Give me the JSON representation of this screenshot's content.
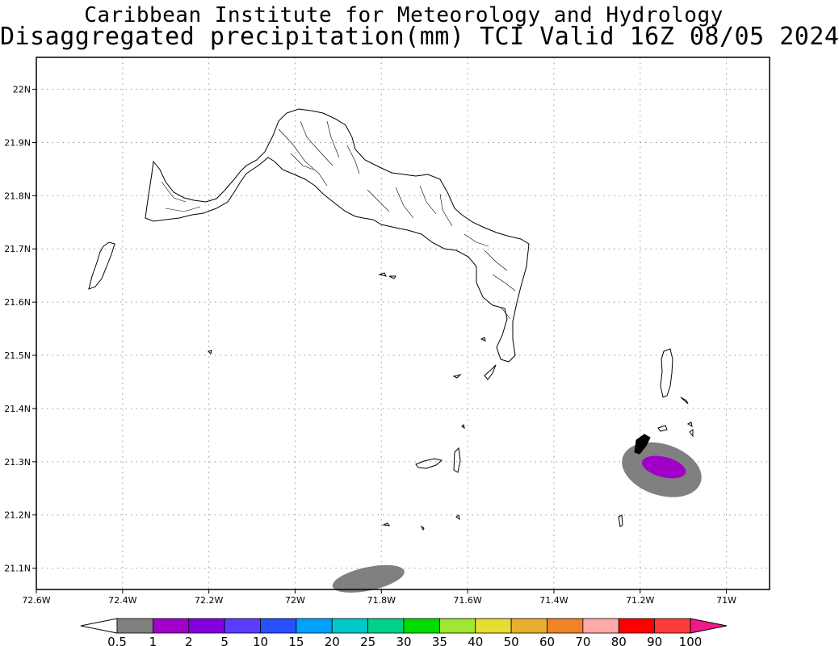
{
  "title_line1": "Caribbean Institute for Meteorology and Hydrology",
  "title_line2": "Disaggregated precipitation(mm) TCI Valid 16Z 08/05 2024",
  "map": {
    "lon_range": [
      -72.6,
      -70.9
    ],
    "lat_range": [
      21.06,
      22.06
    ],
    "lon_ticks": [
      {
        "value": -72.6,
        "label": "72.6W"
      },
      {
        "value": -72.4,
        "label": "72.4W"
      },
      {
        "value": -72.2,
        "label": "72.2W"
      },
      {
        "value": -72.0,
        "label": "72W"
      },
      {
        "value": -71.8,
        "label": "71.8W"
      },
      {
        "value": -71.6,
        "label": "71.6W"
      },
      {
        "value": -71.4,
        "label": "71.4W"
      },
      {
        "value": -71.2,
        "label": "71.2W"
      },
      {
        "value": -71.0,
        "label": "71W"
      }
    ],
    "lat_ticks": [
      {
        "value": 22.0,
        "label": "22N"
      },
      {
        "value": 21.9,
        "label": "21.9N"
      },
      {
        "value": 21.8,
        "label": "21.8N"
      },
      {
        "value": 21.7,
        "label": "21.7N"
      },
      {
        "value": 21.6,
        "label": "21.6N"
      },
      {
        "value": 21.5,
        "label": "21.5N"
      },
      {
        "value": 21.4,
        "label": "21.4N"
      },
      {
        "value": 21.3,
        "label": "21.3N"
      },
      {
        "value": 21.2,
        "label": "21.2N"
      },
      {
        "value": 21.1,
        "label": "21.1N"
      }
    ],
    "grid": true,
    "precip_areas": [
      {
        "name": "east-cell-outer",
        "level": "0.5-1",
        "color": "#808080",
        "center": [
          -71.15,
          21.285
        ],
        "radius_deg": [
          0.095,
          0.048
        ],
        "rotation_deg": 18
      },
      {
        "name": "east-cell-inner",
        "level": "1-2",
        "color": "#a000c8",
        "center": [
          -71.145,
          21.29
        ],
        "radius_deg": [
          0.052,
          0.019
        ],
        "rotation_deg": 14
      },
      {
        "name": "south-cell",
        "level": "0.5-1",
        "color": "#808080",
        "center": [
          -71.83,
          21.08
        ],
        "radius_deg": [
          0.085,
          0.022
        ],
        "rotation_deg": -12
      }
    ]
  },
  "colorbar": {
    "labels": [
      "0.5",
      "1",
      "2",
      "5",
      "10",
      "15",
      "20",
      "25",
      "30",
      "35",
      "40",
      "50",
      "60",
      "70",
      "80",
      "90",
      "100"
    ],
    "colors": [
      "#808080",
      "#a000c8",
      "#8200dc",
      "#5a3cff",
      "#2850ff",
      "#00a0ff",
      "#00c8c8",
      "#00d28c",
      "#00dc00",
      "#a0e632",
      "#e6dc32",
      "#e6af2d",
      "#f08228",
      "#ffaaaa",
      "#ff0000",
      "#ff3c3c"
    ],
    "over_color": "#f0198c",
    "under_color": "#ffffff"
  }
}
